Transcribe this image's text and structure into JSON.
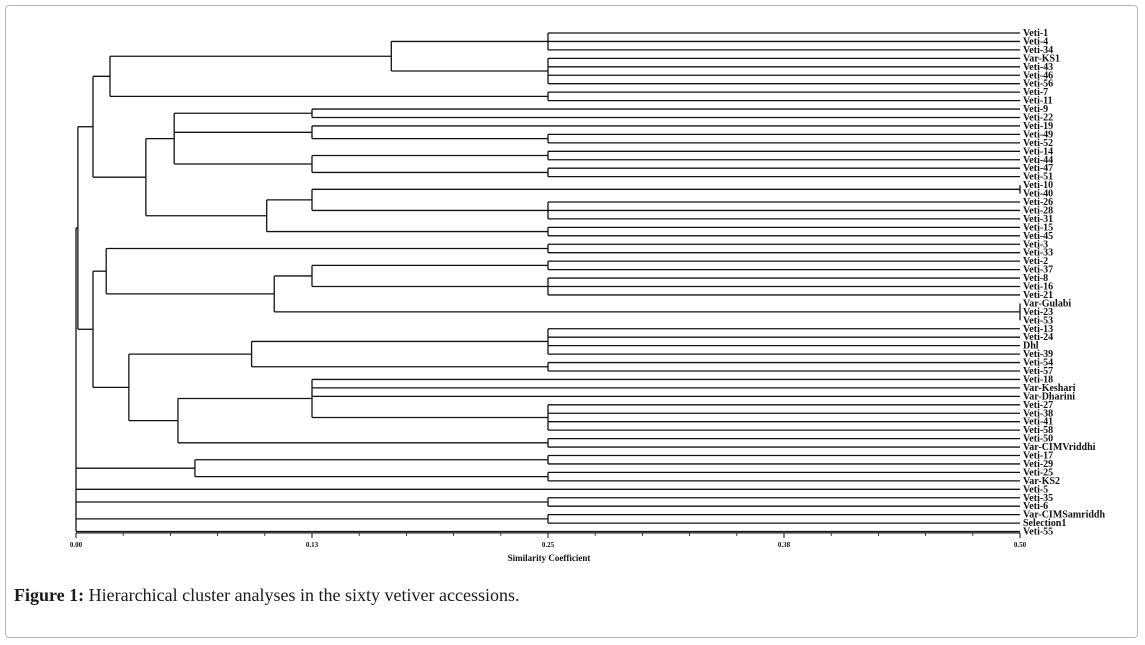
{
  "figure": {
    "caption_label": "Figure 1:",
    "caption_text": " Hierarchical cluster analyses in the sixty vetiver accessions."
  },
  "axis": {
    "title": "Similarity Coefficient",
    "min": 0,
    "max": 0.5,
    "ticks": [
      {
        "value": 0.0,
        "label": "0.00"
      },
      {
        "value": 0.125,
        "label": "0.13"
      },
      {
        "value": 0.25,
        "label": "0.25"
      },
      {
        "value": 0.375,
        "label": "0.38"
      },
      {
        "value": 0.5,
        "label": "0.50"
      }
    ],
    "minor_tick_step": 0.025
  },
  "leaves": [
    "Veti-1",
    "Veti-4",
    "Veti-34",
    "Var-KS1",
    "Veti-43",
    "Veti-46",
    "Veti-56",
    "Veti-7",
    "Veti-11",
    "Veti-9",
    "Veti-22",
    "Veti-19",
    "Veti-49",
    "Veti-52",
    "Veti-14",
    "Veti-44",
    "Veti-47",
    "Veti-51",
    "Veti-10",
    "Veti-40",
    "Veti-26",
    "Veti-28",
    "Veti-31",
    "Veti-15",
    "Veti-45",
    "Veti-3",
    "Veti-33",
    "Veti-2",
    "Veti-37",
    "Veti-8",
    "Veti-16",
    "Veti-21",
    "Var-Gulabi",
    "Veti-23",
    "Veti-53",
    "Veti-13",
    "Veti-24",
    "Dhl",
    "Veti-39",
    "Veti-54",
    "Veti-57",
    "Veti-18",
    "Var-Keshari",
    "Var-Dharini",
    "Veti-27",
    "Veti-38",
    "Veti-41",
    "Veti-58",
    "Veti-50",
    "Var-CIMVriddhi",
    "Veti-17",
    "Veti-29",
    "Veti-25",
    "Var-KS2",
    "Veti-5",
    "Veti-35",
    "Veti-6",
    "Var-CIMSamriddh",
    "Selection1",
    "Veti-55"
  ],
  "tree": [
    {
      "h": 0.0,
      "c": [
        {
          "h": 0.001,
          "c": [
            {
              "h": 0.009,
              "c": [
                {
                  "h": 0.018,
                  "c": [
                    {
                      "h": 0.167,
                      "c": [
                        {
                          "h": 0.25,
                          "c": [
                            0,
                            1,
                            2
                          ]
                        },
                        {
                          "h": 0.25,
                          "c": [
                            3,
                            4,
                            5,
                            6
                          ]
                        }
                      ]
                    },
                    {
                      "h": 0.25,
                      "c": [
                        7,
                        8
                      ]
                    }
                  ]
                },
                {
                  "h": 0.037,
                  "c": [
                    {
                      "h": 0.052,
                      "c": [
                        {
                          "h": 0.125,
                          "c": [
                            9,
                            10
                          ]
                        },
                        {
                          "h": 0.125,
                          "c": [
                            11,
                            {
                              "h": 0.25,
                              "c": [
                                12,
                                13
                              ]
                            }
                          ]
                        },
                        {
                          "h": 0.125,
                          "c": [
                            {
                              "h": 0.25,
                              "c": [
                                14,
                                15
                              ]
                            },
                            {
                              "h": 0.25,
                              "c": [
                                16,
                                17
                              ]
                            }
                          ]
                        }
                      ]
                    },
                    {
                      "h": 0.101,
                      "c": [
                        {
                          "h": 0.125,
                          "c": [
                            {
                              "h": 0.5,
                              "c": [
                                18,
                                19
                              ]
                            },
                            {
                              "h": 0.25,
                              "c": [
                                20,
                                21,
                                22
                              ]
                            }
                          ]
                        },
                        {
                          "h": 0.25,
                          "c": [
                            23,
                            24
                          ]
                        }
                      ]
                    }
                  ]
                }
              ]
            },
            {
              "h": 0.009,
              "c": [
                {
                  "h": 0.016,
                  "c": [
                    {
                      "h": 0.25,
                      "c": [
                        25,
                        26
                      ]
                    },
                    {
                      "h": 0.105,
                      "c": [
                        {
                          "h": 0.125,
                          "c": [
                            {
                              "h": 0.25,
                              "c": [
                                27,
                                28
                              ]
                            },
                            {
                              "h": 0.25,
                              "c": [
                                29,
                                30,
                                31
                              ]
                            }
                          ]
                        },
                        {
                          "h": 0.5,
                          "c": [
                            32,
                            33,
                            34
                          ]
                        }
                      ]
                    }
                  ]
                },
                {
                  "h": 0.028,
                  "c": [
                    {
                      "h": 0.093,
                      "c": [
                        {
                          "h": 0.25,
                          "c": [
                            35,
                            36,
                            37,
                            38
                          ]
                        },
                        {
                          "h": 0.25,
                          "c": [
                            39,
                            40
                          ]
                        }
                      ]
                    },
                    {
                      "h": 0.054,
                      "c": [
                        {
                          "h": 0.125,
                          "c": [
                            41,
                            42,
                            43,
                            {
                              "h": 0.25,
                              "c": [
                                44,
                                45,
                                46,
                                47
                              ]
                            }
                          ]
                        },
                        {
                          "h": 0.25,
                          "c": [
                            48,
                            49
                          ]
                        }
                      ]
                    }
                  ]
                }
              ]
            }
          ]
        },
        {
          "h": 0.063,
          "c": [
            {
              "h": 0.25,
              "c": [
                50,
                51
              ]
            },
            {
              "h": 0.25,
              "c": [
                52,
                53
              ]
            }
          ]
        },
        54,
        {
          "h": 0.25,
          "c": [
            55,
            56
          ]
        },
        {
          "h": 0.25,
          "c": [
            57,
            58
          ]
        },
        59
      ]
    }
  ]
}
